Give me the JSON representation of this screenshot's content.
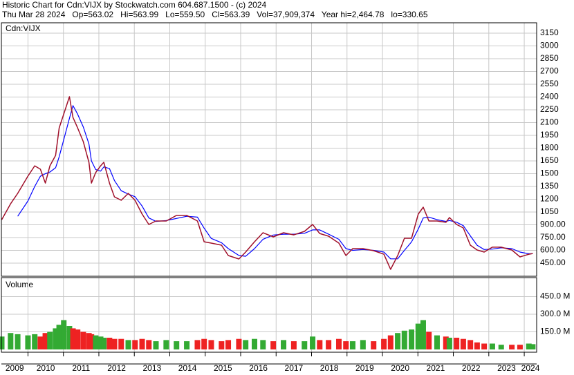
{
  "chart_data": [
    {
      "type": "line",
      "title": "Historic Chart for Cdn:VIJX by Stockwatch.com 604.687.1500 - (c) 2024",
      "subtitle": "Thu Mar 28 2024   Op=563.02   Hi=563.99   Lo=559.50   Cl=563.39   Vol=37,909,374   Year hi=2,464.78   lo=330.65",
      "x": [
        2009.26,
        2009.51,
        2009.71,
        2010.0,
        2010.19,
        2010.35,
        2010.49,
        2010.62,
        2010.78,
        2010.88,
        2011.01,
        2011.17,
        2011.27,
        2011.4,
        2011.56,
        2011.72,
        2011.79,
        2011.91,
        2012.05,
        2012.14,
        2012.3,
        2012.44,
        2012.63,
        2012.83,
        2013.02,
        2013.22,
        2013.41,
        2013.61,
        2013.9,
        2014.19,
        2014.48,
        2014.78,
        2014.97,
        2015.17,
        2015.46,
        2015.65,
        2015.95,
        2016.14,
        2016.39,
        2016.63,
        2016.92,
        2017.21,
        2017.5,
        2017.8,
        2018.03,
        2018.23,
        2018.48,
        2018.77,
        2018.97,
        2019.16,
        2019.45,
        2019.75,
        2020.04,
        2020.23,
        2020.43,
        2020.62,
        2020.82,
        2021.01,
        2021.15,
        2021.31,
        2021.54,
        2021.79,
        2021.89,
        2022.09,
        2022.28,
        2022.48,
        2022.67,
        2022.87,
        2023.1,
        2023.35,
        2023.65,
        2023.88,
        2024.13,
        2024.24
      ],
      "series": [
        {
          "name": "Cdn:VIJX",
          "color": "#a0102a",
          "values": [
            960,
            1147,
            1269,
            1472,
            1593,
            1553,
            1390,
            1593,
            1715,
            2039,
            2201,
            2404,
            2161,
            2039,
            1877,
            1634,
            1390,
            1512,
            1593,
            1634,
            1390,
            1228,
            1188,
            1269,
            1188,
            1026,
            904,
            945,
            945,
            1010,
            1010,
            945,
            701,
            685,
            661,
            539,
            499,
            580,
            701,
            807,
            758,
            807,
            782,
            823,
            904,
            798,
            766,
            685,
            539,
            620,
            620,
            596,
            555,
            377,
            539,
            742,
            742,
            1026,
            1107,
            945,
            945,
            929,
            985,
            904,
            864,
            661,
            604,
            580,
            637,
            637,
            604,
            523,
            555,
            563
          ]
        },
        {
          "color": "#0000ff",
          "values": [
            null,
            null,
            1000,
            1180,
            1350,
            1470,
            1500,
            1520,
            1570,
            1700,
            1900,
            2150,
            2300,
            2200,
            2050,
            1850,
            1650,
            1550,
            1530,
            1580,
            1560,
            1420,
            1300,
            1260,
            1230,
            1120,
            980,
            940,
            950,
            975,
            1000,
            990,
            860,
            740,
            690,
            620,
            540,
            530,
            620,
            730,
            780,
            790,
            790,
            800,
            840,
            840,
            790,
            730,
            620,
            600,
            610,
            600,
            580,
            500,
            500,
            600,
            700,
            850,
            980,
            990,
            960,
            940,
            950,
            930,
            890,
            770,
            660,
            610,
            615,
            630,
            620,
            580,
            560,
            560
          ]
        }
      ],
      "xlim": [
        2009.25,
        2024.35
      ],
      "ylim": [
        296,
        3272
      ],
      "yticks": [
        {
          "value": 450,
          "label": "450.00"
        },
        {
          "value": 600,
          "label": "600.00"
        },
        {
          "value": 750,
          "label": "750.00"
        },
        {
          "value": 900,
          "label": "900.00"
        },
        1050,
        1200,
        1350,
        1500,
        1650,
        1800,
        1950,
        2100,
        2250,
        2400,
        2550,
        2700,
        2850,
        3000,
        3150
      ],
      "grid": true
    },
    {
      "type": "bar",
      "series": [
        {
          "name": "Volume",
          "values": [
            110,
            140,
            130,
            120,
            130,
            110,
            140,
            150,
            180,
            210,
            250,
            200,
            180,
            170,
            150,
            140,
            130,
            120,
            110,
            100,
            100,
            90,
            90,
            80,
            80,
            90,
            80,
            70,
            80,
            70,
            70,
            80,
            90,
            80,
            70,
            80,
            90,
            80,
            90,
            80,
            70,
            80,
            70,
            70,
            110,
            80,
            80,
            90,
            70,
            70,
            80,
            70,
            90,
            120,
            140,
            160,
            170,
            220,
            250,
            150,
            120,
            110,
            100,
            100,
            90,
            80,
            60,
            50,
            50,
            40,
            40,
            40,
            50,
            45
          ]
        }
      ],
      "color_up": "#33aa33",
      "color_down": "#ee2222",
      "ylim": [
        0,
        612
      ],
      "yticks": [
        {
          "value": 150,
          "label": "150.0 M"
        },
        {
          "value": 300,
          "label": "300.0 M"
        },
        {
          "value": 450,
          "label": "450.0 M"
        }
      ],
      "xticks": [
        2009,
        2010,
        2011,
        2012,
        2013,
        2014,
        2015,
        2016,
        2017,
        2018,
        2019,
        2020,
        2021,
        2022,
        2023,
        2024
      ],
      "grid": true
    }
  ]
}
